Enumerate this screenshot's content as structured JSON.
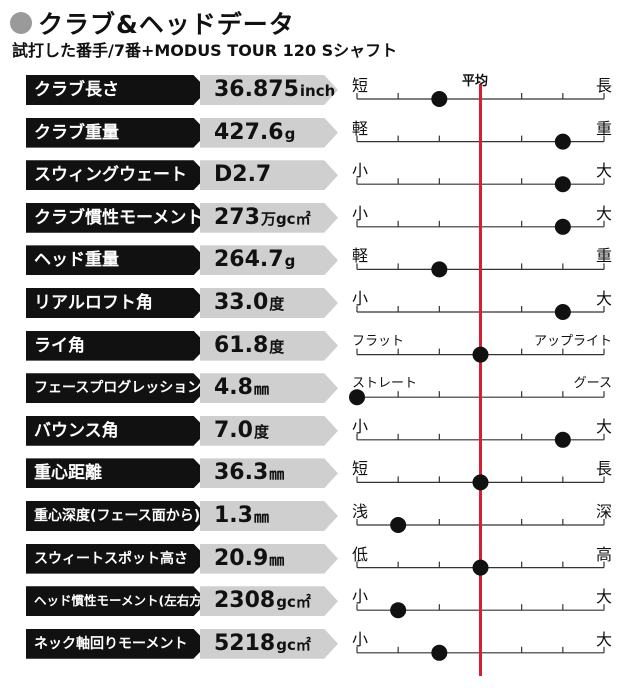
{
  "header": {
    "title": "クラブ&ヘッドデータ",
    "subtitle": "試打した番手/7番+MODUS TOUR 120 Sシャフト"
  },
  "colors": {
    "average_line": "#d42030",
    "marker": "#111111",
    "label_bg": "#111111",
    "value_bg": "#cfcfcf"
  },
  "chart_data": {
    "type": "scatter",
    "average_label": "平均",
    "scale_positions": 6,
    "average_position": 3,
    "rows": [
      {
        "label": "クラブ長さ",
        "value": "36.875",
        "unit": "inch",
        "low": "短",
        "high": "長",
        "position": 2
      },
      {
        "label": "クラブ重量",
        "value": "427.6",
        "unit": "g",
        "low": "軽",
        "high": "重",
        "position": 5
      },
      {
        "label": "スウィングウェート",
        "value": "D2.7",
        "unit": "",
        "low": "小",
        "high": "大",
        "position": 5
      },
      {
        "label": "クラブ慣性モーメント",
        "value": "273",
        "unit": "万gc㎡",
        "low": "小",
        "high": "大",
        "position": 5
      },
      {
        "label": "ヘッド重量",
        "value": "264.7",
        "unit": "g",
        "low": "軽",
        "high": "重",
        "position": 2
      },
      {
        "label": "リアルロフト角",
        "value": "33.0",
        "unit": "度",
        "low": "小",
        "high": "大",
        "position": 5
      },
      {
        "label": "ライ角",
        "value": "61.8",
        "unit": "度",
        "low": "フラット",
        "high": "アップライト",
        "position": 3
      },
      {
        "label": "フェースプログレッション",
        "value": "4.8",
        "unit": "㎜",
        "low": "ストレート",
        "high": "グース",
        "position": 0
      },
      {
        "label": "バウンス角",
        "value": "7.0",
        "unit": "度",
        "low": "小",
        "high": "大",
        "position": 5
      },
      {
        "label": "重心距離",
        "value": "36.3",
        "unit": "㎜",
        "low": "短",
        "high": "長",
        "position": 3
      },
      {
        "label": "重心深度(フェース面から)",
        "value": "1.3",
        "unit": "㎜",
        "low": "浅",
        "high": "深",
        "position": 1
      },
      {
        "label": "スウィートスポット高さ",
        "value": "20.9",
        "unit": "㎜",
        "low": "低",
        "high": "高",
        "position": 3
      },
      {
        "label": "ヘッド慣性モーメント(左右方向)",
        "value": "2308",
        "unit": "gc㎡",
        "low": "小",
        "high": "大",
        "position": 1
      },
      {
        "label": "ネック軸回りモーメント",
        "value": "5218",
        "unit": "gc㎡",
        "low": "小",
        "high": "大",
        "position": 2
      }
    ]
  }
}
